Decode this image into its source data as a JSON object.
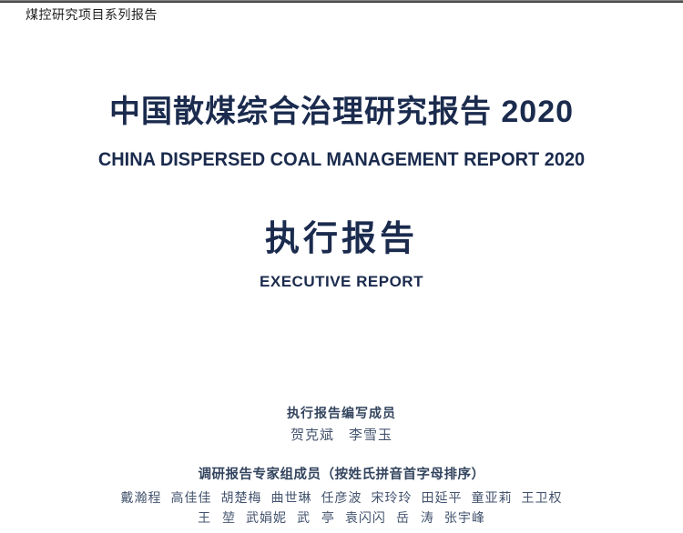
{
  "page": {
    "series_label": "煤控研究项目系列报告",
    "title_zh": "中国散煤综合治理研究报告 2020",
    "title_en": "CHINA DISPERSED COAL MANAGEMENT REPORT 2020",
    "subtitle_zh": "执行报告",
    "subtitle_en": "EXECUTIVE REPORT",
    "colors": {
      "navy": "#1b2b4e",
      "ink": "#1f1f1f",
      "slate": "#43536e",
      "slate_bold": "#33445e"
    }
  },
  "authors": {
    "writers_heading": "执行报告编写成员",
    "writers": [
      "贺克斌",
      "李雪玉"
    ],
    "experts_heading": "调研报告专家组成员（按姓氏拼音首字母排序）",
    "experts_row1": [
      "戴瀚程",
      "高佳佳",
      "胡楚梅",
      "曲世琳",
      "任彦波",
      "宋玲玲",
      "田延平",
      "童亚莉",
      "王卫权"
    ],
    "experts_row2": [
      "王 堃",
      "武娟妮",
      "武 亭",
      "袁闪闪",
      "岳 涛",
      "张宇峰"
    ]
  }
}
